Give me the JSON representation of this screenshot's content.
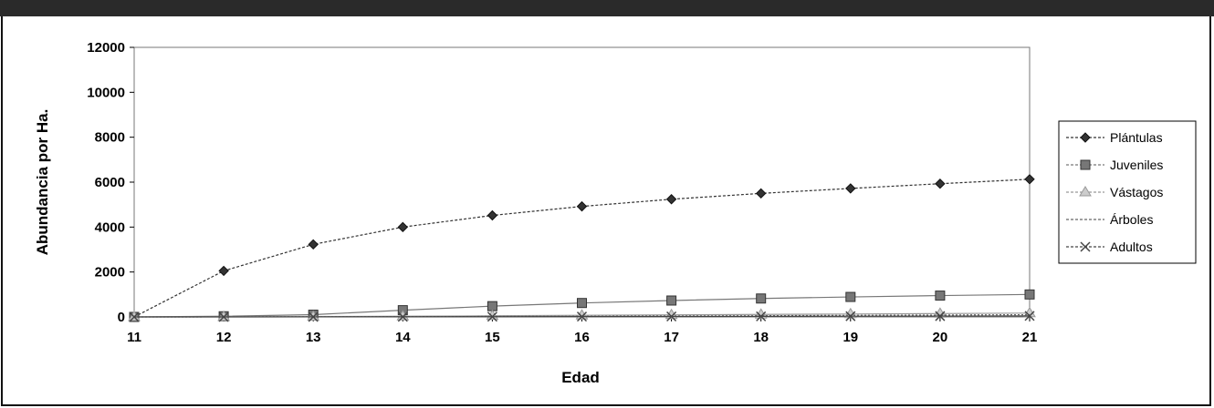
{
  "chart_data": {
    "type": "line",
    "title": "",
    "xlabel": "Edad",
    "ylabel": "Abundancia por Ha.",
    "x": [
      11,
      12,
      13,
      14,
      15,
      16,
      17,
      18,
      19,
      20,
      21
    ],
    "ylim": [
      0,
      12000
    ],
    "yticks": [
      0,
      2000,
      4000,
      6000,
      8000,
      10000,
      12000
    ],
    "grid": false,
    "legend_position": "right",
    "series": [
      {
        "name": "Plántulas",
        "marker": "diamond",
        "color": "#333333",
        "values": [
          0,
          2050,
          3230,
          4000,
          4520,
          4920,
          5240,
          5500,
          5720,
          5930,
          6130
        ]
      },
      {
        "name": "Juveniles",
        "marker": "square",
        "color": "#777777",
        "values": [
          0,
          30,
          100,
          300,
          480,
          620,
          730,
          820,
          890,
          950,
          1000
        ]
      },
      {
        "name": "Vástagos",
        "marker": "triangle",
        "color": "#999999",
        "values": [
          0,
          5,
          15,
          30,
          50,
          70,
          90,
          110,
          130,
          150,
          170
        ]
      },
      {
        "name": "Árboles",
        "marker": "none",
        "color": "#666666",
        "values": [
          0,
          2,
          6,
          12,
          20,
          30,
          42,
          55,
          70,
          85,
          100
        ]
      },
      {
        "name": "Adultos",
        "marker": "x",
        "color": "#444444",
        "values": [
          0,
          1,
          3,
          6,
          10,
          15,
          20,
          26,
          32,
          38,
          45
        ]
      }
    ]
  }
}
